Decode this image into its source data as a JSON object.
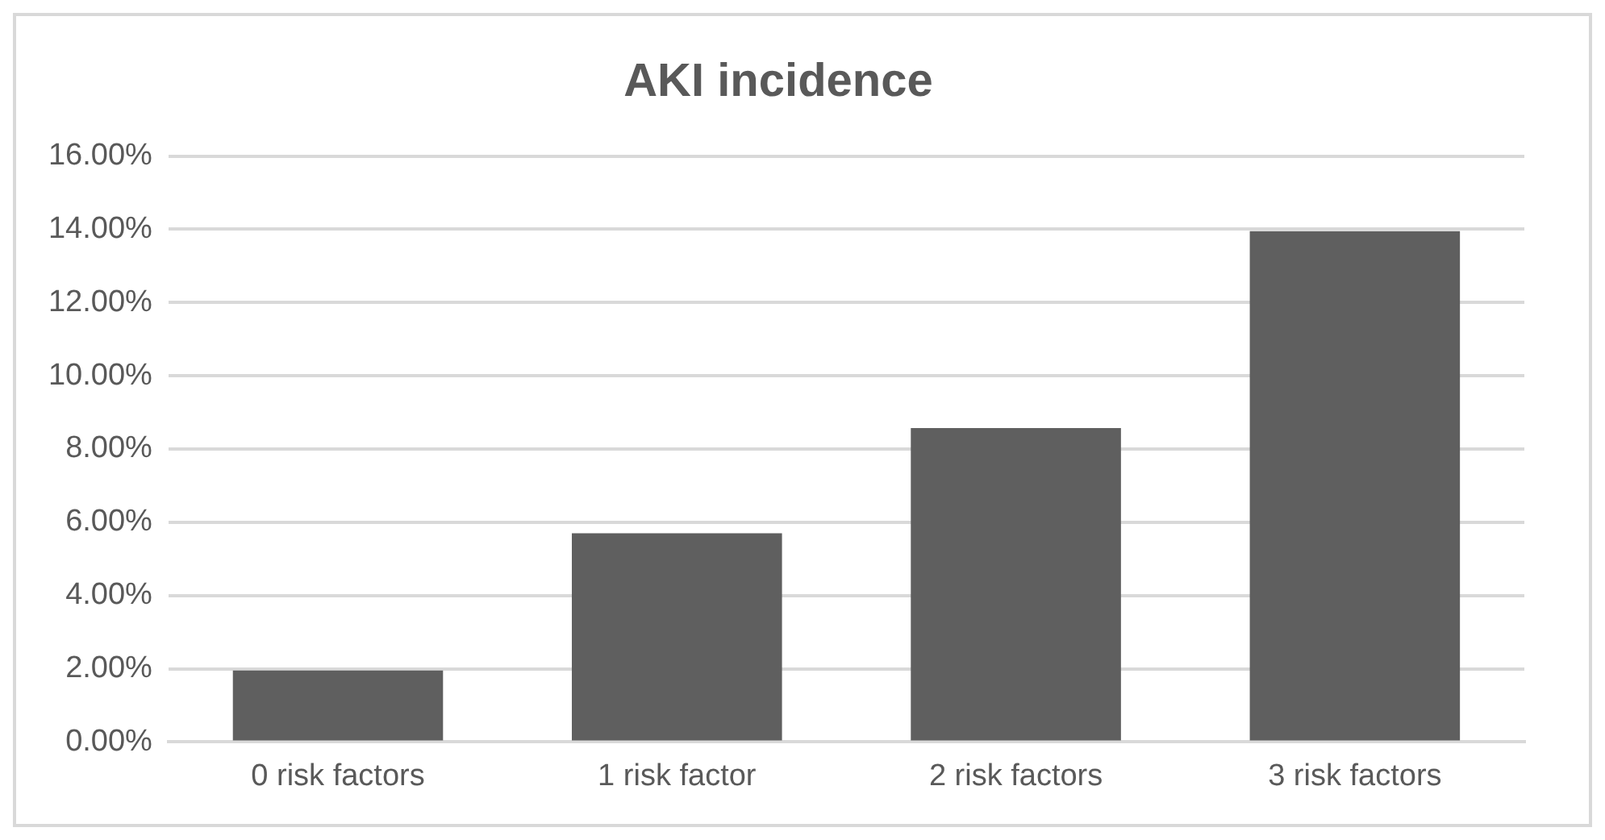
{
  "chart_data": {
    "type": "bar",
    "title": "AKI incidence",
    "categories": [
      "0 risk factors",
      "1 risk factor",
      "2 risk factors",
      "3 risk factors"
    ],
    "values": [
      1.95,
      5.7,
      8.57,
      13.95
    ],
    "color": "#5f5f5f",
    "ylim": [
      0,
      16
    ],
    "yticks": [
      {
        "value": 0,
        "label": "0.00%"
      },
      {
        "value": 2,
        "label": "2.00%"
      },
      {
        "value": 4,
        "label": "4.00%"
      },
      {
        "value": 6,
        "label": "6.00%"
      },
      {
        "value": 8,
        "label": "8.00%"
      },
      {
        "value": 10,
        "label": "10.00%"
      },
      {
        "value": 12,
        "label": "12.00%"
      },
      {
        "value": 14,
        "label": "14.00%"
      },
      {
        "value": 16,
        "label": "16.00%"
      }
    ],
    "grid": "y"
  }
}
